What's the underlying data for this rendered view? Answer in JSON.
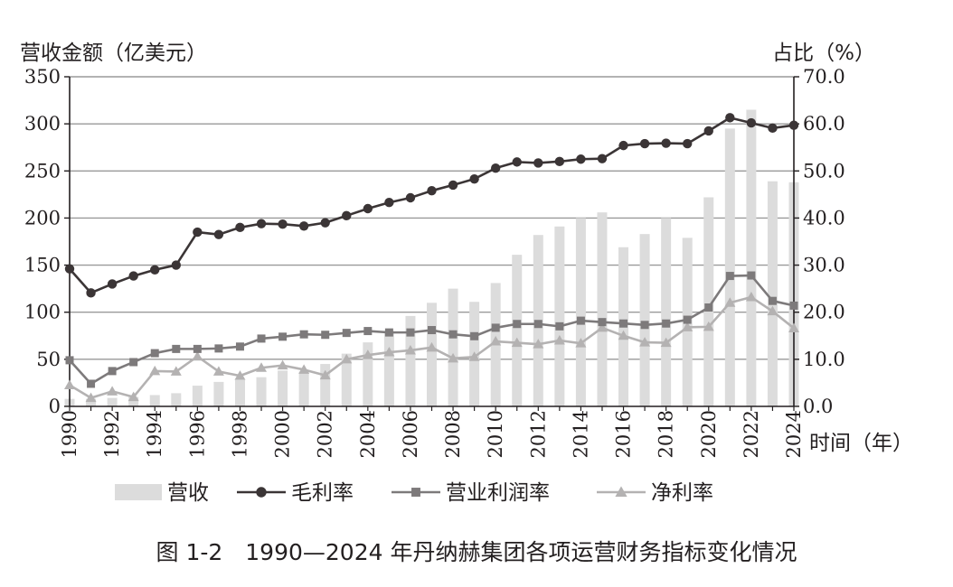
{
  "figure_caption": "图 1-2　1990—2024 年丹纳赫集团各项运营财务指标变化情况",
  "colors": {
    "revenue": "#dcdcdc",
    "gross": "#3b3536",
    "operating": "#7d7a7b",
    "net": "#b4b2b2",
    "grid": "#9a9a9a",
    "axis": "#231f20"
  },
  "chart_data": {
    "type": "bar+line",
    "title": "",
    "xlabel": "时间（年）",
    "ylabel_left": "营收金额（亿美元）",
    "ylabel_right": "占比（%）",
    "ylim_left": [
      0,
      350
    ],
    "ylim_right": [
      0,
      70
    ],
    "yticks_left": [
      "0",
      "50",
      "100",
      "150",
      "200",
      "250",
      "300",
      "350"
    ],
    "yticks_right": [
      "0.0",
      "10.0",
      "20.0",
      "30.0",
      "40.0",
      "50.0",
      "60.0",
      "70.0"
    ],
    "xtick_labels": [
      "1990",
      "1992",
      "1994",
      "1996",
      "1998",
      "2000",
      "2002",
      "2004",
      "2006",
      "2008",
      "2010",
      "2012",
      "2014",
      "2016",
      "2018",
      "2020",
      "2022",
      "2024"
    ],
    "grid": "horizontal",
    "legend_position": "bottom",
    "x": [
      1990,
      1991,
      1992,
      1993,
      1994,
      1995,
      1996,
      1997,
      1998,
      1999,
      2000,
      2001,
      2002,
      2003,
      2004,
      2005,
      2006,
      2007,
      2008,
      2009,
      2010,
      2011,
      2012,
      2013,
      2014,
      2015,
      2016,
      2017,
      2018,
      2019,
      2020,
      2021,
      2022,
      2023,
      2024
    ],
    "series": [
      {
        "name": "营收",
        "type": "bar",
        "axis": "left",
        "values": [
          8,
          8,
          9,
          10,
          12,
          14,
          22,
          26,
          28,
          31,
          38,
          37,
          45,
          56,
          68,
          80,
          96,
          110,
          125,
          111,
          131,
          161,
          182,
          191,
          200,
          206,
          169,
          183,
          200,
          179,
          222,
          295,
          315,
          239,
          238
        ]
      },
      {
        "name": "毛利率",
        "type": "line",
        "axis": "right",
        "marker": "circle",
        "values": [
          29.2,
          24.1,
          26.0,
          27.7,
          29.0,
          30.0,
          37.0,
          36.5,
          38.0,
          38.8,
          38.7,
          38.3,
          39.0,
          40.5,
          42.0,
          43.3,
          44.3,
          45.8,
          47.0,
          48.3,
          50.6,
          51.9,
          51.7,
          52.0,
          52.5,
          52.6,
          55.4,
          55.8,
          55.9,
          55.8,
          58.5,
          61.3,
          60.2,
          59.1,
          59.7
        ]
      },
      {
        "name": "营业利润率",
        "type": "line",
        "axis": "right",
        "marker": "square",
        "values": [
          9.8,
          4.8,
          7.5,
          9.4,
          11.3,
          12.2,
          12.2,
          12.3,
          12.7,
          14.4,
          14.8,
          15.3,
          15.2,
          15.6,
          16.0,
          15.7,
          15.7,
          16.2,
          15.3,
          14.9,
          16.7,
          17.5,
          17.5,
          17.0,
          18.2,
          17.9,
          17.6,
          17.3,
          17.6,
          18.4,
          21.0,
          27.7,
          27.8,
          22.4,
          21.4
        ]
      },
      {
        "name": "净利率",
        "type": "line",
        "axis": "right",
        "marker": "triangle",
        "values": [
          4.5,
          1.8,
          3.2,
          2.0,
          7.5,
          7.4,
          10.6,
          7.4,
          6.5,
          8.2,
          8.7,
          7.8,
          6.6,
          10.0,
          10.9,
          11.5,
          11.9,
          12.5,
          10.2,
          10.5,
          13.8,
          13.5,
          13.2,
          14.0,
          13.4,
          16.7,
          15.0,
          13.6,
          13.5,
          16.8,
          16.9,
          22.0,
          23.2,
          20.2,
          16.6
        ]
      }
    ]
  }
}
